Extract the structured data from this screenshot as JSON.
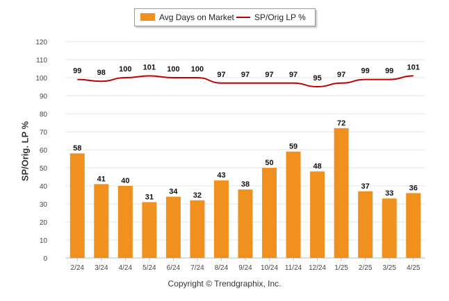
{
  "chart_data": {
    "type": "bar",
    "categories": [
      "2/24",
      "3/24",
      "4/24",
      "5/24",
      "6/24",
      "7/24",
      "8/24",
      "9/24",
      "10/24",
      "11/24",
      "12/24",
      "1/25",
      "2/25",
      "3/25",
      "4/25"
    ],
    "series": [
      {
        "name": "Avg Days on Market",
        "type": "bar",
        "color": "#f0901e",
        "values": [
          58,
          41,
          40,
          31,
          34,
          32,
          43,
          38,
          50,
          59,
          48,
          72,
          37,
          33,
          36
        ]
      },
      {
        "name": "SP/Orig LP %",
        "type": "line",
        "color": "#c00000",
        "values": [
          99,
          98,
          100,
          101,
          100,
          100,
          97,
          97,
          97,
          97,
          95,
          97,
          99,
          99,
          101
        ]
      }
    ],
    "ylabel": "SP/Orig. LP %",
    "ylim": [
      0,
      120
    ],
    "yticks": [
      0,
      10,
      20,
      30,
      40,
      50,
      60,
      70,
      80,
      90,
      100,
      110,
      120
    ],
    "grid": true,
    "legend_position": "top-center"
  },
  "copyright": "Copyright © Trendgraphix, Inc."
}
